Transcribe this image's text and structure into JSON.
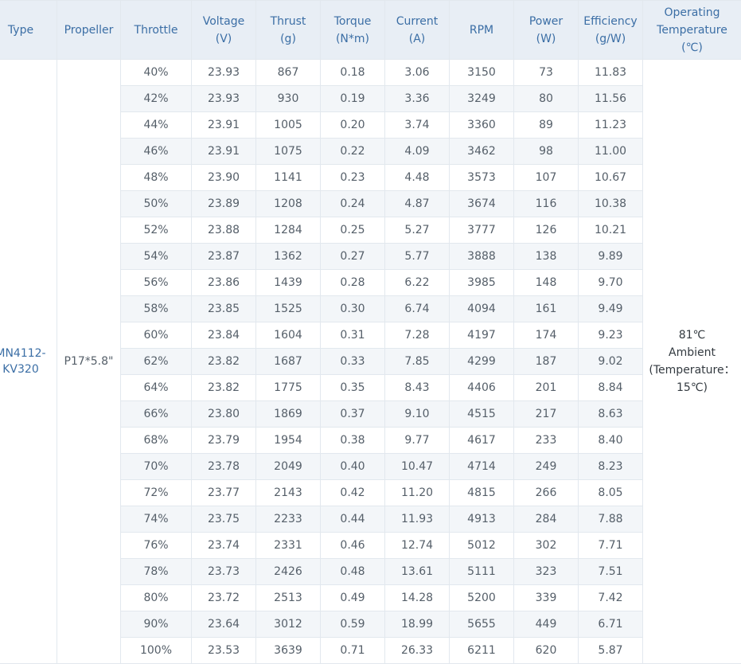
{
  "headers": {
    "type": "Type",
    "propeller": "Propeller",
    "throttle": "Throttle",
    "voltage": "Voltage\n(V)",
    "thrust": "Thrust\n(g)",
    "torque": "Torque\n(N*m)",
    "current": "Current\n(A)",
    "rpm": "RPM",
    "power": "Power\n(W)",
    "efficiency": "Efficiency\n(g/W)",
    "temperature": "Operating\nTemperature\n(℃)"
  },
  "merged": {
    "type": "MN4112-\nKV320",
    "propeller": "P17*5.8\"",
    "temperature": "81℃\nAmbient\n(Temperature：\n15℃)"
  },
  "rows": [
    {
      "throttle": "40%",
      "voltage": "23.93",
      "thrust": "867",
      "torque": "0.18",
      "current": "3.06",
      "rpm": "3150",
      "power": "73",
      "efficiency": "11.83"
    },
    {
      "throttle": "42%",
      "voltage": "23.93",
      "thrust": "930",
      "torque": "0.19",
      "current": "3.36",
      "rpm": "3249",
      "power": "80",
      "efficiency": "11.56"
    },
    {
      "throttle": "44%",
      "voltage": "23.91",
      "thrust": "1005",
      "torque": "0.20",
      "current": "3.74",
      "rpm": "3360",
      "power": "89",
      "efficiency": "11.23"
    },
    {
      "throttle": "46%",
      "voltage": "23.91",
      "thrust": "1075",
      "torque": "0.22",
      "current": "4.09",
      "rpm": "3462",
      "power": "98",
      "efficiency": "11.00"
    },
    {
      "throttle": "48%",
      "voltage": "23.90",
      "thrust": "1141",
      "torque": "0.23",
      "current": "4.48",
      "rpm": "3573",
      "power": "107",
      "efficiency": "10.67"
    },
    {
      "throttle": "50%",
      "voltage": "23.89",
      "thrust": "1208",
      "torque": "0.24",
      "current": "4.87",
      "rpm": "3674",
      "power": "116",
      "efficiency": "10.38"
    },
    {
      "throttle": "52%",
      "voltage": "23.88",
      "thrust": "1284",
      "torque": "0.25",
      "current": "5.27",
      "rpm": "3777",
      "power": "126",
      "efficiency": "10.21"
    },
    {
      "throttle": "54%",
      "voltage": "23.87",
      "thrust": "1362",
      "torque": "0.27",
      "current": "5.77",
      "rpm": "3888",
      "power": "138",
      "efficiency": "9.89"
    },
    {
      "throttle": "56%",
      "voltage": "23.86",
      "thrust": "1439",
      "torque": "0.28",
      "current": "6.22",
      "rpm": "3985",
      "power": "148",
      "efficiency": "9.70"
    },
    {
      "throttle": "58%",
      "voltage": "23.85",
      "thrust": "1525",
      "torque": "0.30",
      "current": "6.74",
      "rpm": "4094",
      "power": "161",
      "efficiency": "9.49"
    },
    {
      "throttle": "60%",
      "voltage": "23.84",
      "thrust": "1604",
      "torque": "0.31",
      "current": "7.28",
      "rpm": "4197",
      "power": "174",
      "efficiency": "9.23"
    },
    {
      "throttle": "62%",
      "voltage": "23.82",
      "thrust": "1687",
      "torque": "0.33",
      "current": "7.85",
      "rpm": "4299",
      "power": "187",
      "efficiency": "9.02"
    },
    {
      "throttle": "64%",
      "voltage": "23.82",
      "thrust": "1775",
      "torque": "0.35",
      "current": "8.43",
      "rpm": "4406",
      "power": "201",
      "efficiency": "8.84"
    },
    {
      "throttle": "66%",
      "voltage": "23.80",
      "thrust": "1869",
      "torque": "0.37",
      "current": "9.10",
      "rpm": "4515",
      "power": "217",
      "efficiency": "8.63"
    },
    {
      "throttle": "68%",
      "voltage": "23.79",
      "thrust": "1954",
      "torque": "0.38",
      "current": "9.77",
      "rpm": "4617",
      "power": "233",
      "efficiency": "8.40"
    },
    {
      "throttle": "70%",
      "voltage": "23.78",
      "thrust": "2049",
      "torque": "0.40",
      "current": "10.47",
      "rpm": "4714",
      "power": "249",
      "efficiency": "8.23"
    },
    {
      "throttle": "72%",
      "voltage": "23.77",
      "thrust": "2143",
      "torque": "0.42",
      "current": "11.20",
      "rpm": "4815",
      "power": "266",
      "efficiency": "8.05"
    },
    {
      "throttle": "74%",
      "voltage": "23.75",
      "thrust": "2233",
      "torque": "0.44",
      "current": "11.93",
      "rpm": "4913",
      "power": "284",
      "efficiency": "7.88"
    },
    {
      "throttle": "76%",
      "voltage": "23.74",
      "thrust": "2331",
      "torque": "0.46",
      "current": "12.74",
      "rpm": "5012",
      "power": "302",
      "efficiency": "7.71"
    },
    {
      "throttle": "78%",
      "voltage": "23.73",
      "thrust": "2426",
      "torque": "0.48",
      "current": "13.61",
      "rpm": "5111",
      "power": "323",
      "efficiency": "7.51"
    },
    {
      "throttle": "80%",
      "voltage": "23.72",
      "thrust": "2513",
      "torque": "0.49",
      "current": "14.28",
      "rpm": "5200",
      "power": "339",
      "efficiency": "7.42"
    },
    {
      "throttle": "90%",
      "voltage": "23.64",
      "thrust": "3012",
      "torque": "0.59",
      "current": "18.99",
      "rpm": "5655",
      "power": "449",
      "efficiency": "6.71"
    },
    {
      "throttle": "100%",
      "voltage": "23.53",
      "thrust": "3639",
      "torque": "0.71",
      "current": "26.33",
      "rpm": "6211",
      "power": "620",
      "efficiency": "5.87"
    }
  ]
}
